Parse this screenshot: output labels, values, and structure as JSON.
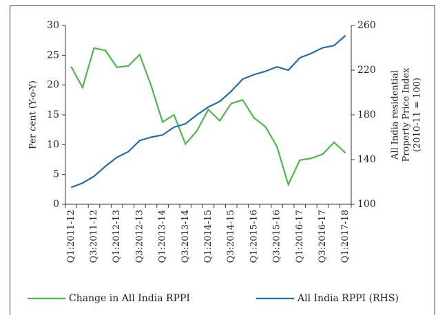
{
  "chart_data": {
    "type": "line",
    "ylabel": "Per cent (Y-o-Y)",
    "y2label": [
      "All India residential",
      "Property Price Index",
      "(2010-11 = 100)"
    ],
    "categories": [
      "Q1:2011-12",
      null,
      "Q3:2011-12",
      null,
      "Q1:2012-13",
      null,
      "Q3:2012-13",
      null,
      "Q1:2013-14",
      null,
      "Q3:2013-14",
      null,
      "Q1:2014-15",
      null,
      "Q3:2014-15",
      null,
      "Q1:2015-16",
      null,
      "Q3:2015-16",
      null,
      "Q1:2016-17",
      null,
      "Q3:2016-17",
      null,
      "Q1:2017-18"
    ],
    "series": [
      {
        "name": "Change in All India RPPI",
        "color": "#4db848",
        "values": [
          23.1,
          19.6,
          26.2,
          25.8,
          23.0,
          23.2,
          25.1,
          19.9,
          13.8,
          15.0,
          10.1,
          12.3,
          15.9,
          14.0,
          16.9,
          17.5,
          14.5,
          13.0,
          9.7,
          3.3,
          7.4,
          7.7,
          8.4,
          10.4,
          8.6
        ]
      },
      {
        "name": "All India RPPI (RHS)",
        "color": "#1f6cb5",
        "axis": "y2",
        "values": [
          115,
          119,
          125,
          134,
          142,
          147,
          157,
          160,
          162,
          169,
          172,
          180,
          187,
          192,
          201,
          212,
          216,
          219,
          223,
          220,
          231,
          235,
          240,
          242,
          251
        ]
      }
    ],
    "ylim": [
      0,
      30
    ],
    "yticks": [
      0,
      5,
      10,
      15,
      20,
      25,
      30
    ],
    "y2lim": [
      100,
      260
    ],
    "y2ticks": [
      100,
      140,
      180,
      220,
      260
    ],
    "legend": "bottom"
  }
}
